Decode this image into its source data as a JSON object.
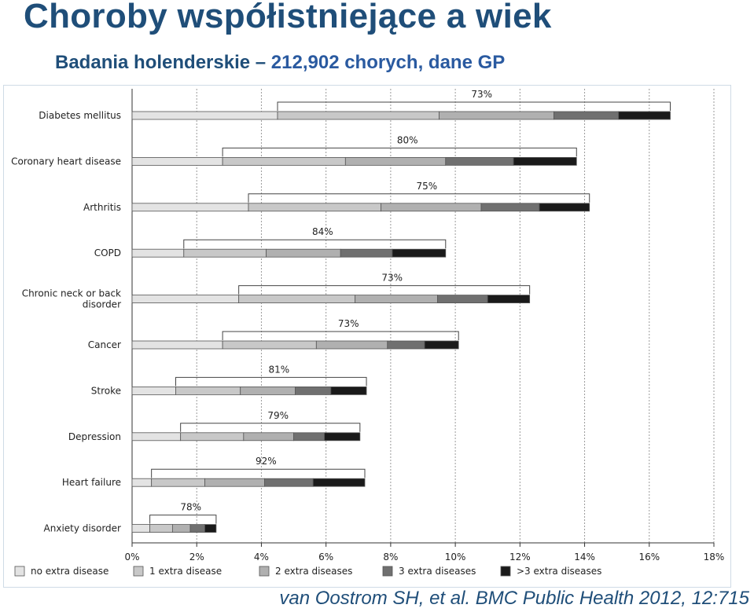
{
  "header": {
    "title": "Choroby współistniejące a wiek",
    "subtitle_bold": "Badania holenderskie –",
    "subtitle_rest": "212,902 chorych, dane GP"
  },
  "citation": "van Oostrom SH, et al. BMC Public Health 2012, 12:715",
  "colors": {
    "title": "#1f4e79",
    "no_extra": "#e3e3e3",
    "one_extra": "#c8c8c8",
    "two_extra": "#b0b0b0",
    "three_extra": "#707070",
    "more_extra": "#1a1a1a"
  },
  "chart_data": {
    "type": "bar",
    "orientation": "horizontal",
    "stacked": true,
    "x_unit": "%",
    "xlim": [
      0,
      18
    ],
    "x_ticks": [
      "0%",
      "2%",
      "4%",
      "6%",
      "8%",
      "10%",
      "12%",
      "14%",
      "16%",
      "18%"
    ],
    "grid": "vertical dashed",
    "legend_position": "bottom",
    "categories": [
      "Diabetes mellitus",
      "Coronary heart disease",
      "Arthritis",
      "COPD",
      "Chronic neck or back disorder",
      "Cancer",
      "Stroke",
      "Depression",
      "Heart failure",
      "Anxiety disorder"
    ],
    "series": [
      {
        "name": "no extra disease",
        "color": "#e3e3e3",
        "values": [
          4.5,
          2.8,
          3.6,
          1.6,
          3.3,
          2.8,
          1.35,
          1.5,
          0.6,
          0.55
        ]
      },
      {
        "name": "1 extra disease",
        "color": "#c8c8c8",
        "values": [
          5.0,
          3.8,
          4.1,
          2.55,
          3.6,
          2.9,
          2.0,
          1.95,
          1.65,
          0.7
        ]
      },
      {
        "name": "2 extra diseases",
        "color": "#b0b0b0",
        "values": [
          3.55,
          3.1,
          3.1,
          2.3,
          2.55,
          2.2,
          1.7,
          1.55,
          1.85,
          0.55
        ]
      },
      {
        "name": "3 extra diseases",
        "color": "#707070",
        "values": [
          2.0,
          2.1,
          1.8,
          1.6,
          1.55,
          1.15,
          1.1,
          0.95,
          1.5,
          0.45
        ]
      },
      {
        "name": ">3 extra diseases",
        "color": "#1a1a1a",
        "values": [
          1.6,
          1.95,
          1.55,
          1.65,
          1.3,
          1.05,
          1.1,
          1.1,
          1.6,
          0.35
        ]
      }
    ],
    "bracket_labels": [
      "73%",
      "80%",
      "75%",
      "84%",
      "73%",
      "73%",
      "81%",
      "79%",
      "92%",
      "78%"
    ]
  }
}
